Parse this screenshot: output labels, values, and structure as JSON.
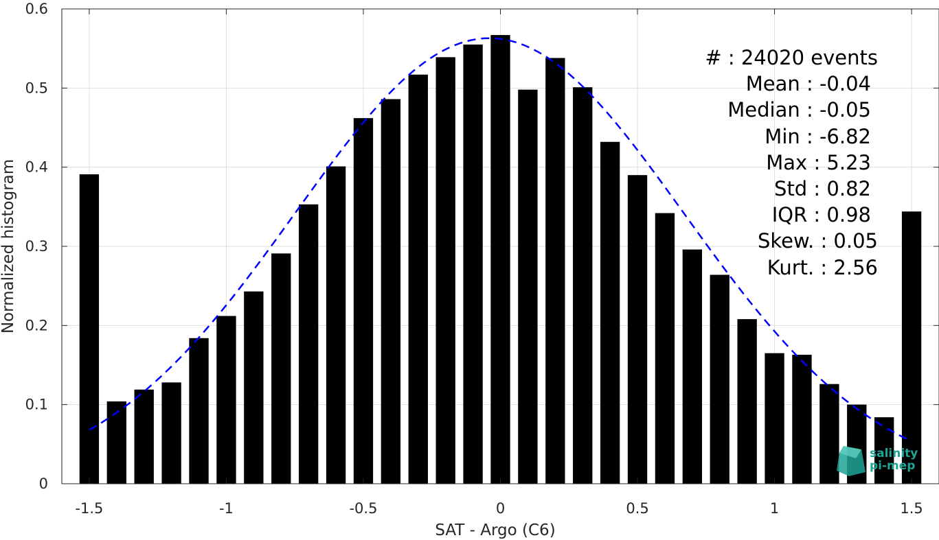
{
  "chart_data": {
    "type": "bar",
    "title": "",
    "xlabel": "SAT - Argo (C6)",
    "ylabel": "Normalized histogram",
    "xlim": [
      -1.6,
      1.6
    ],
    "ylim": [
      0,
      0.6
    ],
    "x_ticks": [
      -1.5,
      -1,
      -0.5,
      0,
      0.5,
      1,
      1.5
    ],
    "x_tick_labels": [
      "-1.5",
      "-1",
      "-0.5",
      "0",
      "0.5",
      "1",
      "1.5"
    ],
    "y_ticks": [
      0,
      0.1,
      0.2,
      0.3,
      0.4,
      0.5,
      0.6
    ],
    "y_tick_labels": [
      "0",
      "0.1",
      "0.2",
      "0.3",
      "0.4",
      "0.5",
      "0.6"
    ],
    "grid": true,
    "bar_color": "#000000",
    "bin_centers": [
      -1.5,
      -1.4,
      -1.3,
      -1.2,
      -1.1,
      -1.0,
      -0.9,
      -0.8,
      -0.7,
      -0.6,
      -0.5,
      -0.4,
      -0.3,
      -0.2,
      -0.1,
      0.0,
      0.1,
      0.2,
      0.3,
      0.4,
      0.5,
      0.6,
      0.7,
      0.8,
      0.9,
      1.0,
      1.1,
      1.2,
      1.3,
      1.4,
      1.5
    ],
    "values": [
      0.391,
      0.104,
      0.119,
      0.128,
      0.184,
      0.212,
      0.243,
      0.291,
      0.353,
      0.401,
      0.462,
      0.486,
      0.517,
      0.539,
      0.555,
      0.567,
      0.498,
      0.538,
      0.501,
      0.432,
      0.39,
      0.342,
      0.296,
      0.264,
      0.208,
      0.165,
      0.163,
      0.126,
      0.1,
      0.084,
      0.344
    ],
    "fit_curve": {
      "type": "gaussian",
      "style": "dashed",
      "color": "#0000ff",
      "mean": -0.04,
      "std": 0.71,
      "peak": 0.563,
      "x_range": [
        -1.5,
        1.5
      ]
    }
  },
  "stats": {
    "lines": [
      "#  : 24020 events",
      "Mean : -0.04",
      "Median : -0.05",
      "Min : -6.82",
      "Max : 5.23",
      "Std : 0.82",
      "IQR : 0.98",
      "Skew. : 0.05",
      "Kurt. : 2.56"
    ]
  },
  "logo": {
    "line1": "salinity",
    "line2": "pi-mep",
    "color": "#1fa596"
  }
}
